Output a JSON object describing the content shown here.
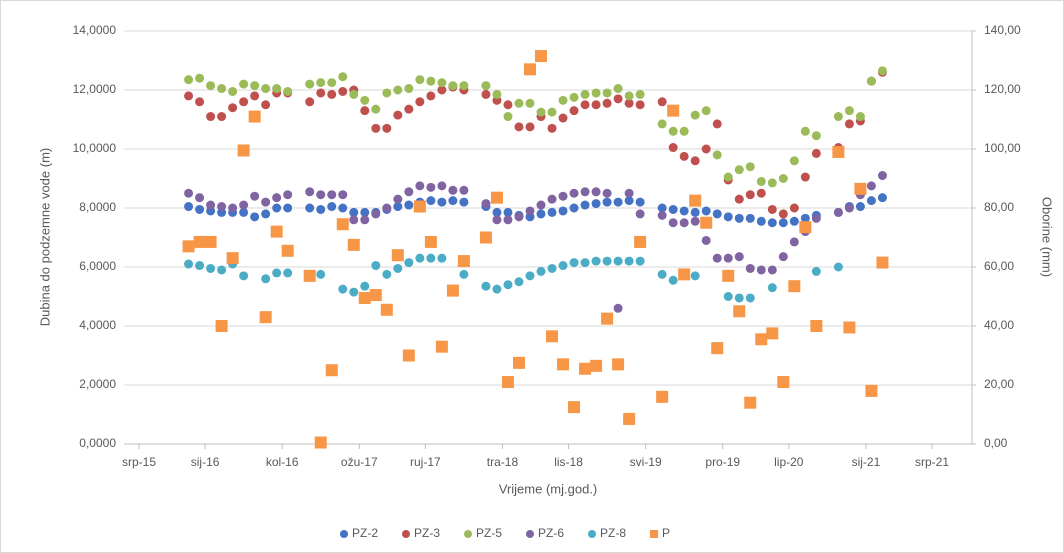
{
  "chart_data": {
    "type": "scatter",
    "xlabel": "Vrijeme (mj.god.)",
    "ylabel": "Dubina do podzemne vode (m)",
    "y2label": "Oborine (mm)",
    "x": [
      "2015-11",
      "2015-12",
      "2016-01",
      "2016-02",
      "2016-03",
      "2016-04",
      "2016-05",
      "2016-06",
      "2016-07",
      "2016-08",
      "2016-10",
      "2016-11",
      "2016-12",
      "2017-01",
      "2017-02",
      "2017-03",
      "2017-04",
      "2017-05",
      "2017-06",
      "2017-07",
      "2017-08",
      "2017-09",
      "2017-10",
      "2017-11",
      "2017-12",
      "2018-02",
      "2018-03",
      "2018-04",
      "2018-05",
      "2018-06",
      "2018-07",
      "2018-08",
      "2018-09",
      "2018-10",
      "2018-11",
      "2018-12",
      "2019-01",
      "2019-02",
      "2019-03",
      "2019-04",
      "2019-06",
      "2019-07",
      "2019-08",
      "2019-09",
      "2019-10",
      "2019-11",
      "2019-12",
      "2020-01",
      "2020-02",
      "2020-03",
      "2020-04",
      "2020-05",
      "2020-06",
      "2020-07",
      "2020-08",
      "2020-10",
      "2020-11",
      "2020-12",
      "2021-01",
      "2021-02"
    ],
    "xlim": [
      "2015-07",
      "2021-07"
    ],
    "xticks": [
      {
        "value": "2015-07",
        "label": "srp-15"
      },
      {
        "value": "2016-01",
        "label": "sij-16"
      },
      {
        "value": "2016-08",
        "label": "kol-16"
      },
      {
        "value": "2017-03",
        "label": "ožu-17"
      },
      {
        "value": "2017-09",
        "label": "ruj-17"
      },
      {
        "value": "2018-04",
        "label": "tra-18"
      },
      {
        "value": "2018-10",
        "label": "lis-18"
      },
      {
        "value": "2019-05",
        "label": "svi-19"
      },
      {
        "value": "2019-12",
        "label": "pro-19"
      },
      {
        "value": "2020-06",
        "label": "lip-20"
      },
      {
        "value": "2021-01",
        "label": "sij-21"
      },
      {
        "value": "2021-07",
        "label": "srp-21"
      }
    ],
    "ylim": [
      0,
      14
    ],
    "yticks": [
      {
        "value": 0,
        "label": "0,0000"
      },
      {
        "value": 2,
        "label": "2,0000"
      },
      {
        "value": 4,
        "label": "4,0000"
      },
      {
        "value": 6,
        "label": "6,0000"
      },
      {
        "value": 8,
        "label": "8,0000"
      },
      {
        "value": 10,
        "label": "10,0000"
      },
      {
        "value": 12,
        "label": "12,0000"
      },
      {
        "value": 14,
        "label": "14,0000"
      }
    ],
    "y2lim": [
      0,
      140
    ],
    "y2ticks": [
      {
        "value": 0,
        "label": "0,00"
      },
      {
        "value": 20,
        "label": "20,00"
      },
      {
        "value": 40,
        "label": "40,00"
      },
      {
        "value": 60,
        "label": "60,00"
      },
      {
        "value": 80,
        "label": "80,00"
      },
      {
        "value": 100,
        "label": "100,00"
      },
      {
        "value": 120,
        "label": "120,00"
      },
      {
        "value": 140,
        "label": "140,00"
      }
    ],
    "grid": true,
    "legend": "bottom",
    "series": [
      {
        "name": "PZ-2",
        "color": "#4472c4",
        "marker": "circle",
        "values": [
          8.05,
          7.95,
          7.9,
          7.85,
          7.85,
          7.85,
          7.7,
          7.8,
          8.0,
          8.0,
          8.0,
          7.95,
          8.05,
          8.0,
          7.85,
          7.85,
          7.85,
          7.95,
          8.05,
          8.1,
          8.2,
          8.25,
          8.2,
          8.25,
          8.2,
          8.05,
          7.85,
          7.85,
          7.75,
          7.7,
          7.8,
          7.85,
          7.9,
          8.0,
          8.1,
          8.15,
          8.2,
          8.2,
          8.25,
          8.2,
          8.0,
          7.95,
          7.9,
          7.85,
          7.9,
          7.8,
          7.7,
          7.65,
          7.65,
          7.55,
          7.5,
          7.5,
          7.55,
          7.65,
          7.75,
          7.85,
          8.05,
          8.05,
          8.25,
          8.35
        ]
      },
      {
        "name": "PZ-3",
        "color": "#c0504d",
        "marker": "circle",
        "values": [
          11.8,
          11.6,
          11.1,
          11.1,
          11.4,
          11.6,
          11.8,
          11.5,
          11.9,
          11.9,
          11.6,
          11.9,
          11.85,
          11.95,
          12.0,
          11.3,
          10.7,
          10.7,
          11.15,
          11.35,
          11.6,
          11.8,
          12.0,
          12.1,
          12.0,
          11.85,
          11.65,
          11.5,
          10.75,
          10.75,
          11.1,
          10.7,
          11.05,
          11.3,
          11.5,
          11.5,
          11.55,
          11.7,
          11.55,
          11.5,
          11.6,
          10.05,
          9.75,
          9.6,
          10.0,
          10.85,
          8.95,
          8.3,
          8.45,
          8.5,
          7.95,
          7.8,
          8.0,
          9.05,
          9.85,
          10.05,
          10.85,
          10.95,
          12.3,
          12.6
        ]
      },
      {
        "name": "PZ-5",
        "color": "#9bbb59",
        "marker": "circle",
        "values": [
          12.35,
          12.4,
          12.15,
          12.05,
          11.95,
          12.2,
          12.15,
          12.05,
          12.05,
          11.95,
          12.2,
          12.25,
          12.25,
          12.45,
          11.85,
          11.65,
          11.35,
          11.9,
          12.0,
          12.05,
          12.35,
          12.3,
          12.25,
          12.15,
          12.15,
          12.15,
          11.85,
          11.1,
          11.55,
          11.55,
          11.25,
          11.25,
          11.65,
          11.75,
          11.85,
          11.9,
          11.9,
          12.05,
          11.8,
          11.85,
          10.85,
          10.6,
          10.6,
          11.15,
          11.3,
          9.8,
          9.05,
          9.3,
          9.4,
          8.9,
          8.85,
          9.0,
          9.6,
          10.6,
          10.45,
          11.1,
          11.3,
          11.1,
          12.3,
          12.65
        ]
      },
      {
        "name": "PZ-6",
        "color": "#8064a2",
        "marker": "circle",
        "values": [
          8.5,
          8.35,
          8.1,
          8.05,
          8.0,
          8.1,
          8.4,
          8.2,
          8.35,
          8.45,
          8.55,
          8.45,
          8.45,
          8.45,
          7.6,
          7.6,
          7.8,
          8.0,
          8.3,
          8.55,
          8.75,
          8.7,
          8.75,
          8.6,
          8.6,
          8.15,
          7.6,
          7.6,
          7.7,
          7.9,
          8.1,
          8.3,
          8.4,
          8.5,
          8.55,
          8.55,
          8.5,
          4.6,
          8.5,
          7.8,
          7.75,
          7.5,
          7.5,
          7.55,
          6.9,
          6.3,
          6.3,
          6.35,
          5.95,
          5.9,
          5.9,
          6.35,
          6.85,
          7.2,
          7.65,
          7.85,
          8.0,
          8.45,
          8.75,
          9.1
        ]
      },
      {
        "name": "PZ-8",
        "color": "#4bacc6",
        "marker": "circle",
        "values": [
          6.1,
          6.05,
          5.95,
          5.9,
          6.1,
          5.7,
          null,
          5.6,
          5.8,
          5.8,
          5.75,
          5.75,
          null,
          5.25,
          5.15,
          5.35,
          6.05,
          5.75,
          5.95,
          6.15,
          6.3,
          6.3,
          6.3,
          null,
          5.75,
          5.35,
          5.25,
          5.4,
          5.5,
          5.7,
          5.85,
          5.95,
          6.05,
          6.15,
          6.15,
          6.2,
          6.2,
          6.2,
          6.2,
          6.2,
          5.75,
          5.55,
          5.75,
          5.7,
          null,
          null,
          5.0,
          4.95,
          4.95,
          null,
          5.3,
          null,
          null,
          null,
          5.85,
          6.0,
          null,
          null,
          null,
          null
        ]
      },
      {
        "name": "P",
        "color": "#f79646",
        "marker": "square",
        "axis": "y2",
        "values": [
          67,
          68.5,
          68.5,
          40,
          63,
          99.5,
          111,
          43,
          72,
          65.5,
          57,
          0.5,
          25,
          74.5,
          67.5,
          49.5,
          50.5,
          45.5,
          64,
          30,
          80.5,
          68.5,
          33,
          52,
          62,
          70,
          83.5,
          21,
          27.5,
          127,
          131.5,
          36.5,
          27,
          12.5,
          25.5,
          26.5,
          42.5,
          27,
          8.5,
          68.5,
          16,
          113,
          57.5,
          82.5,
          75,
          32.5,
          57,
          45,
          14,
          35.5,
          37.5,
          21,
          53.5,
          73.5,
          40,
          99,
          39.5,
          86.5,
          18,
          61.5
        ]
      }
    ]
  }
}
